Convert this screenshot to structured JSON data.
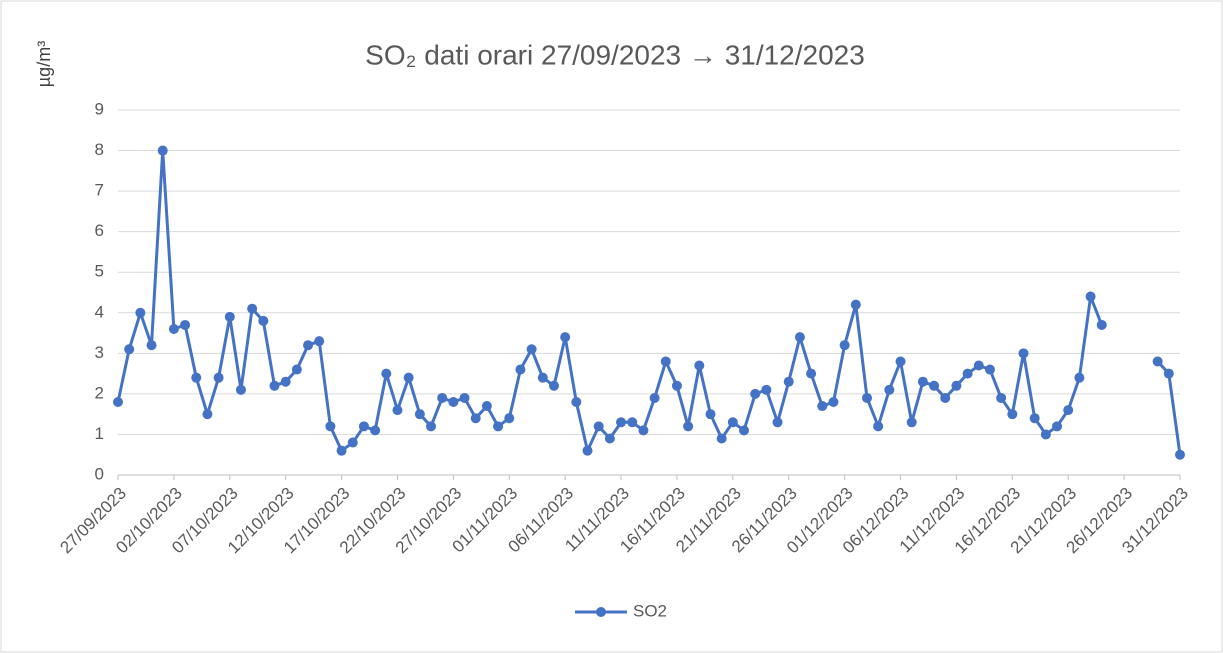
{
  "chart_data": {
    "type": "line",
    "title": "SO₂ dati orari 27/09/2023 → 31/12/2023",
    "ylabel": "µg/m³",
    "x": [
      "27/09/2023",
      "28/09/2023",
      "29/09/2023",
      "30/09/2023",
      "01/10/2023",
      "02/10/2023",
      "03/10/2023",
      "04/10/2023",
      "05/10/2023",
      "06/10/2023",
      "07/10/2023",
      "08/10/2023",
      "09/10/2023",
      "10/10/2023",
      "11/10/2023",
      "12/10/2023",
      "13/10/2023",
      "14/10/2023",
      "15/10/2023",
      "16/10/2023",
      "17/10/2023",
      "18/10/2023",
      "19/10/2023",
      "20/10/2023",
      "21/10/2023",
      "22/10/2023",
      "23/10/2023",
      "24/10/2023",
      "25/10/2023",
      "26/10/2023",
      "27/10/2023",
      "28/10/2023",
      "29/10/2023",
      "30/10/2023",
      "31/10/2023",
      "01/11/2023",
      "02/11/2023",
      "03/11/2023",
      "04/11/2023",
      "05/11/2023",
      "06/11/2023",
      "07/11/2023",
      "08/11/2023",
      "09/11/2023",
      "10/11/2023",
      "11/11/2023",
      "12/11/2023",
      "13/11/2023",
      "14/11/2023",
      "15/11/2023",
      "16/11/2023",
      "17/11/2023",
      "18/11/2023",
      "19/11/2023",
      "20/11/2023",
      "21/11/2023",
      "22/11/2023",
      "23/11/2023",
      "24/11/2023",
      "25/11/2023",
      "26/11/2023",
      "27/11/2023",
      "28/11/2023",
      "29/11/2023",
      "30/11/2023",
      "01/12/2023",
      "02/12/2023",
      "03/12/2023",
      "04/12/2023",
      "05/12/2023",
      "06/12/2023",
      "07/12/2023",
      "08/12/2023",
      "09/12/2023",
      "10/12/2023",
      "11/12/2023",
      "12/12/2023",
      "13/12/2023",
      "14/12/2023",
      "15/12/2023",
      "16/12/2023",
      "17/12/2023",
      "18/12/2023",
      "19/12/2023",
      "20/12/2023",
      "21/12/2023",
      "22/12/2023",
      "23/12/2023",
      "24/12/2023",
      "25/12/2023",
      "26/12/2023",
      "27/12/2023",
      "28/12/2023",
      "29/12/2023",
      "30/12/2023",
      "31/12/2023"
    ],
    "series": [
      {
        "name": "SO2",
        "color": "#4472c4",
        "values": [
          1.8,
          3.1,
          4.0,
          3.2,
          8.0,
          3.6,
          3.7,
          2.4,
          1.5,
          2.4,
          3.9,
          2.1,
          4.1,
          3.8,
          2.2,
          2.3,
          2.6,
          3.2,
          3.3,
          1.2,
          0.6,
          0.8,
          1.2,
          1.1,
          2.5,
          1.6,
          2.4,
          1.5,
          1.2,
          1.9,
          1.8,
          1.9,
          1.4,
          1.7,
          1.2,
          1.4,
          2.6,
          3.1,
          2.4,
          2.2,
          3.4,
          1.8,
          0.6,
          1.2,
          0.9,
          1.3,
          1.3,
          1.1,
          1.9,
          2.8,
          2.2,
          1.2,
          2.7,
          1.5,
          0.9,
          1.3,
          1.1,
          2.0,
          2.1,
          1.3,
          2.3,
          3.4,
          2.5,
          1.7,
          1.8,
          3.2,
          4.2,
          1.9,
          1.2,
          2.1,
          2.8,
          1.3,
          2.3,
          2.2,
          1.9,
          2.2,
          2.5,
          2.7,
          2.6,
          1.9,
          1.5,
          3.0,
          1.4,
          1.0,
          1.2,
          1.6,
          2.4,
          4.4,
          3.7,
          null,
          null,
          null,
          null,
          2.8,
          2.5,
          0.5
        ]
      }
    ],
    "xlim": [
      "27/09/2023",
      "31/12/2023"
    ],
    "xticks": [
      "27/09/2023",
      "02/10/2023",
      "07/10/2023",
      "12/10/2023",
      "17/10/2023",
      "22/10/2023",
      "27/10/2023",
      "01/11/2023",
      "06/11/2023",
      "11/11/2023",
      "16/11/2023",
      "21/11/2023",
      "26/11/2023",
      "01/12/2023",
      "06/12/2023",
      "11/12/2023",
      "16/12/2023",
      "21/12/2023",
      "26/12/2023",
      "31/12/2023"
    ],
    "ylim": [
      0,
      9
    ],
    "yticks": [
      0,
      1,
      2,
      3,
      4,
      5,
      6,
      7,
      8,
      9
    ],
    "grid": true,
    "legend": "bottom"
  }
}
